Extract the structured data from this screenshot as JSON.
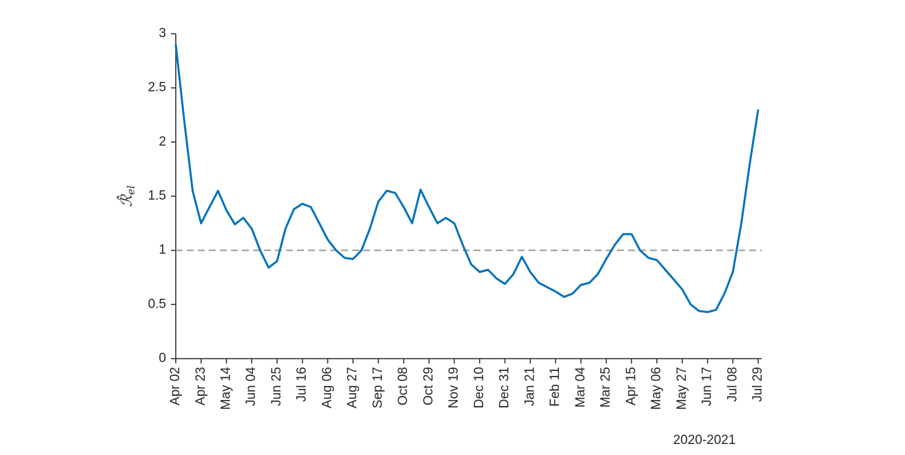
{
  "chart_data": {
    "type": "line",
    "ylabel": "ℛ̂",
    "ylabel_subscript": "el",
    "xlabel": "2020-2021",
    "categories": [
      "Apr 02",
      null,
      null,
      "Apr 23",
      null,
      null,
      "May 14",
      null,
      null,
      "Jun 04",
      null,
      null,
      "Jun 25",
      null,
      null,
      "Jul 16",
      null,
      null,
      "Aug 06",
      null,
      null,
      "Aug 27",
      null,
      null,
      "Sep 17",
      null,
      null,
      "Oct 08",
      null,
      null,
      "Oct 29",
      null,
      null,
      "Nov 19",
      null,
      null,
      "Dec 10",
      null,
      null,
      "Dec 31",
      null,
      null,
      "Jan 21",
      null,
      null,
      "Feb 11",
      null,
      null,
      "Mar 04",
      null,
      null,
      "Mar 25",
      null,
      null,
      "Apr 15",
      null,
      null,
      "May 06",
      null,
      null,
      "May 27",
      null,
      null,
      "Jun 17",
      null,
      null,
      "Jul 08",
      null,
      null,
      "Jul 29"
    ],
    "values": [
      2.9,
      2.2,
      1.55,
      1.25,
      1.4,
      1.55,
      1.37,
      1.24,
      1.3,
      1.2,
      1.0,
      0.84,
      0.9,
      1.2,
      1.38,
      1.43,
      1.4,
      1.25,
      1.1,
      1.0,
      0.93,
      0.92,
      1.0,
      1.2,
      1.45,
      1.55,
      1.53,
      1.4,
      1.25,
      1.56,
      1.4,
      1.25,
      1.3,
      1.25,
      1.05,
      0.87,
      0.8,
      0.82,
      0.74,
      0.69,
      0.78,
      0.94,
      0.8,
      0.7,
      0.66,
      0.62,
      0.57,
      0.6,
      0.68,
      0.7,
      0.78,
      0.92,
      1.05,
      1.15,
      1.15,
      1.0,
      0.93,
      0.91,
      0.82,
      0.73,
      0.64,
      0.5,
      0.44,
      0.43,
      0.45,
      0.6,
      0.8,
      1.25,
      1.8,
      2.3
    ],
    "color": "#0072bd",
    "reference_line": 1,
    "reference_color": "#999999",
    "ylim": [
      0,
      3
    ],
    "yticks": [
      0,
      0.5,
      1,
      1.5,
      2,
      2.5,
      3
    ]
  }
}
